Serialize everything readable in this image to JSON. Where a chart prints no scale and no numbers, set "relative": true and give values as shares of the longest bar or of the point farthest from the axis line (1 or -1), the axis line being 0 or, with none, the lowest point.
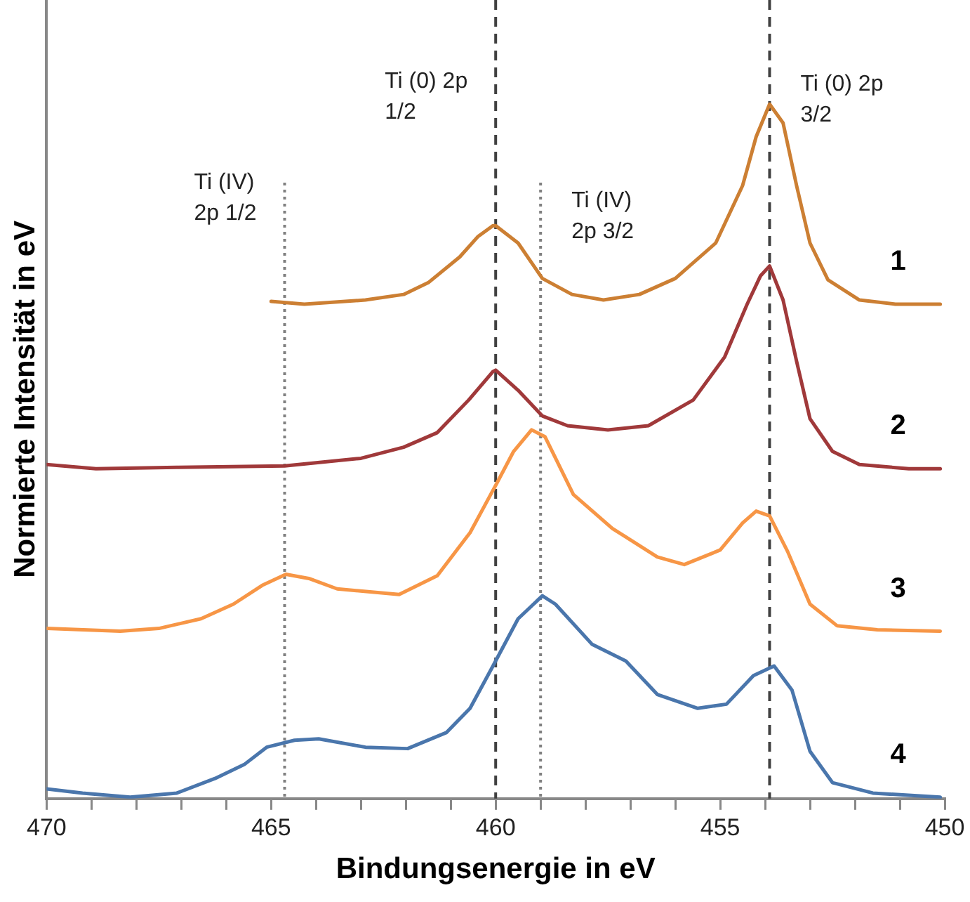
{
  "chart_data": {
    "type": "line",
    "xlabel": "Bindungsenergie in eV",
    "ylabel": "Normierte Intensität in eV",
    "relative": true,
    "grid": false,
    "legend": false,
    "marker": "none",
    "line_style": "solid",
    "xlim": [
      470,
      450
    ],
    "xticks": [
      470,
      {
        "value": 469,
        "label": null
      },
      {
        "value": 468,
        "label": null
      },
      {
        "value": 467,
        "label": null
      },
      {
        "value": 466,
        "label": null
      },
      465,
      {
        "value": 464,
        "label": null
      },
      {
        "value": 463,
        "label": null
      },
      {
        "value": 462,
        "label": null
      },
      {
        "value": 461,
        "label": null
      },
      460,
      {
        "value": 459,
        "label": null
      },
      {
        "value": 458,
        "label": null
      },
      {
        "value": 457,
        "label": null
      },
      {
        "value": 456,
        "label": null
      },
      455,
      {
        "value": 454,
        "label": null
      },
      {
        "value": 453,
        "label": null
      },
      {
        "value": 452,
        "label": null
      },
      {
        "value": 451,
        "label": null
      },
      450
    ],
    "series": [
      {
        "name": "1",
        "color": "#cc7f33",
        "x": [
          465.0,
          464.26,
          462.9,
          462.05,
          461.5,
          460.8,
          460.4,
          460.06,
          460.0,
          459.5,
          458.96,
          458.3,
          457.6,
          456.8,
          456.0,
          455.1,
          454.5,
          454.2,
          453.9,
          453.6,
          453.3,
          453.0,
          452.6,
          451.9,
          451.1,
          450.1
        ],
        "values": [
          0.716,
          0.712,
          0.718,
          0.726,
          0.743,
          0.78,
          0.809,
          0.825,
          0.825,
          0.8,
          0.749,
          0.726,
          0.718,
          0.726,
          0.749,
          0.8,
          0.883,
          0.953,
          1.0,
          0.973,
          0.883,
          0.8,
          0.747,
          0.718,
          0.712,
          0.712
        ]
      },
      {
        "name": "2",
        "color": "#a0393a",
        "x": [
          470,
          468.9,
          467.1,
          464.7,
          463.0,
          462.05,
          461.3,
          460.6,
          460.06,
          460.0,
          459.5,
          458.96,
          458.4,
          457.5,
          456.6,
          455.6,
          454.9,
          454.4,
          454.1,
          453.9,
          453.6,
          453.3,
          453.0,
          452.5,
          451.9,
          450.8,
          450.1
        ],
        "values": [
          0.481,
          0.475,
          0.477,
          0.479,
          0.49,
          0.506,
          0.527,
          0.574,
          0.615,
          0.617,
          0.588,
          0.551,
          0.537,
          0.531,
          0.537,
          0.574,
          0.636,
          0.712,
          0.753,
          0.767,
          0.718,
          0.63,
          0.547,
          0.5,
          0.481,
          0.475,
          0.475
        ]
      },
      {
        "name": "3",
        "color": "#f79646",
        "x": [
          470,
          468.36,
          467.5,
          466.56,
          465.84,
          465.2,
          464.67,
          464.16,
          463.53,
          462.15,
          461.3,
          460.57,
          460.06,
          460.0,
          459.6,
          459.2,
          458.9,
          458.27,
          457.4,
          456.4,
          455.8,
          455.0,
          454.5,
          454.2,
          453.9,
          453.5,
          453.0,
          452.4,
          451.5,
          450.1
        ],
        "values": [
          0.245,
          0.241,
          0.245,
          0.259,
          0.28,
          0.307,
          0.323,
          0.317,
          0.302,
          0.294,
          0.321,
          0.383,
          0.444,
          0.451,
          0.5,
          0.531,
          0.521,
          0.438,
          0.389,
          0.348,
          0.337,
          0.358,
          0.397,
          0.414,
          0.407,
          0.356,
          0.28,
          0.249,
          0.243,
          0.241
        ]
      },
      {
        "name": "4",
        "color": "#4a76ac",
        "x": [
          470,
          469.2,
          468.14,
          467.1,
          466.25,
          465.6,
          465.1,
          464.48,
          463.94,
          462.9,
          461.96,
          461.1,
          460.57,
          460.06,
          459.5,
          458.96,
          458.67,
          457.85,
          457.1,
          456.4,
          455.5,
          454.86,
          454.26,
          453.8,
          453.4,
          453.0,
          452.5,
          451.6,
          450.1
        ],
        "values": [
          0.014,
          0.008,
          0.002,
          0.008,
          0.029,
          0.049,
          0.074,
          0.084,
          0.086,
          0.074,
          0.072,
          0.095,
          0.13,
          0.191,
          0.259,
          0.292,
          0.28,
          0.222,
          0.198,
          0.15,
          0.13,
          0.136,
          0.177,
          0.191,
          0.156,
          0.068,
          0.023,
          0.008,
          0.002
        ]
      }
    ],
    "ref_lines": [
      {
        "axis": "x",
        "value": 464.7,
        "label": "Ti (IV)\n2p 1/2",
        "color": "#808080",
        "line_style": "dotted"
      },
      {
        "axis": "x",
        "value": 460.0,
        "label": "Ti (0) 2p\n1/2",
        "color": "#404040",
        "line_style": "dashed"
      },
      {
        "axis": "x",
        "value": 459.0,
        "label": "Ti (IV)\n2p 3/2",
        "color": "#808080",
        "line_style": "dotted"
      },
      {
        "axis": "x",
        "value": 453.9,
        "label": "Ti (0) 2p\n3/2",
        "color": "#404040",
        "line_style": "dashed"
      }
    ]
  }
}
